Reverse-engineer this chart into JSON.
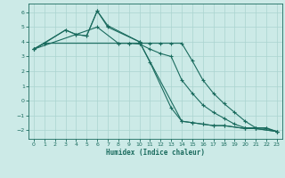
{
  "xlabel": "Humidex (Indice chaleur)",
  "bg_color": "#cceae7",
  "line_color": "#1a6b5e",
  "grid_color": "#aad4cf",
  "xlim": [
    -0.5,
    23.5
  ],
  "ylim": [
    -2.6,
    6.6
  ],
  "xticks": [
    0,
    1,
    2,
    3,
    4,
    5,
    6,
    7,
    8,
    9,
    10,
    11,
    12,
    13,
    14,
    15,
    16,
    17,
    18,
    19,
    20,
    21,
    22,
    23
  ],
  "yticks": [
    -2,
    -1,
    0,
    1,
    2,
    3,
    4,
    5,
    6
  ],
  "line1_x": [
    0,
    1,
    3,
    4,
    5,
    6,
    7,
    10,
    11,
    13,
    14,
    15,
    16,
    17,
    18,
    20,
    21,
    23
  ],
  "line1_y": [
    3.5,
    3.9,
    4.8,
    4.5,
    4.4,
    6.1,
    5.0,
    4.0,
    2.6,
    -0.5,
    -1.4,
    -1.5,
    -1.6,
    -1.7,
    -1.7,
    -1.9,
    -1.9,
    -2.1
  ],
  "line2_x": [
    0,
    3,
    4,
    5,
    6,
    7,
    10,
    14,
    15,
    16,
    17,
    18,
    20,
    21,
    23
  ],
  "line2_y": [
    3.5,
    4.8,
    4.5,
    4.4,
    6.1,
    5.1,
    4.0,
    -1.4,
    -1.5,
    -1.6,
    -1.7,
    -1.7,
    -1.9,
    -1.9,
    -2.1
  ],
  "line3_x": [
    0,
    6,
    8,
    9,
    10,
    11,
    12,
    13,
    14,
    15,
    16,
    17,
    18,
    19,
    20,
    21,
    22,
    23
  ],
  "line3_y": [
    3.5,
    5.0,
    3.9,
    3.9,
    3.85,
    3.5,
    3.2,
    3.0,
    1.4,
    0.5,
    -0.3,
    -0.8,
    -1.2,
    -1.6,
    -1.85,
    -1.85,
    -1.9,
    -2.1
  ],
  "line4_x": [
    0,
    1,
    8,
    9,
    10,
    11,
    12,
    13,
    14,
    15,
    16,
    17,
    18,
    19,
    20,
    21,
    22,
    23
  ],
  "line4_y": [
    3.5,
    3.9,
    3.9,
    3.9,
    3.9,
    3.9,
    3.9,
    3.9,
    3.9,
    2.7,
    1.4,
    0.5,
    -0.2,
    -0.8,
    -1.4,
    -1.85,
    -1.85,
    -2.1
  ]
}
